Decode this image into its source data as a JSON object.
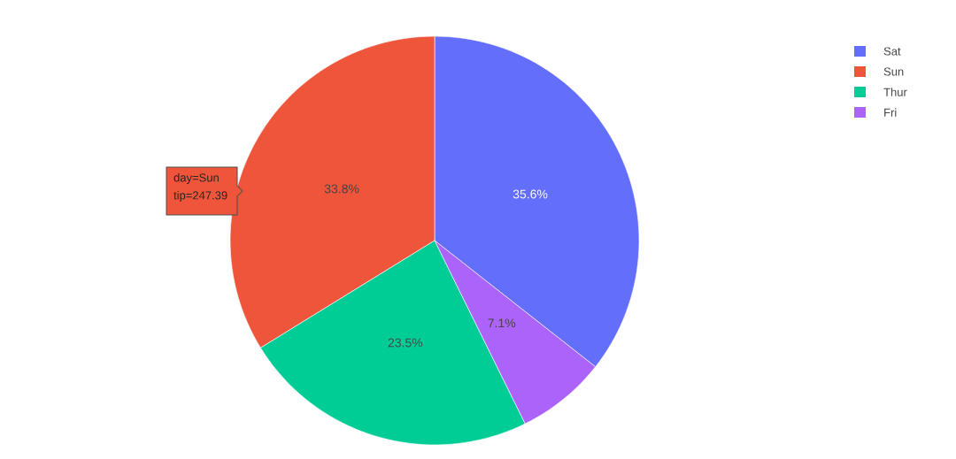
{
  "chart_data": {
    "type": "pie",
    "categories": [
      "Sat",
      "Sun",
      "Thur",
      "Fri"
    ],
    "values": [
      35.6,
      33.8,
      23.5,
      7.1
    ],
    "colors": [
      "#636efa",
      "#ef553b",
      "#00cc96",
      "#ab63fa"
    ],
    "value_labels": [
      "35.6%",
      "33.8%",
      "23.5%",
      "7.1%"
    ],
    "legend": "top right",
    "annotations": [
      "day=Sun",
      "tip=247.39"
    ]
  }
}
